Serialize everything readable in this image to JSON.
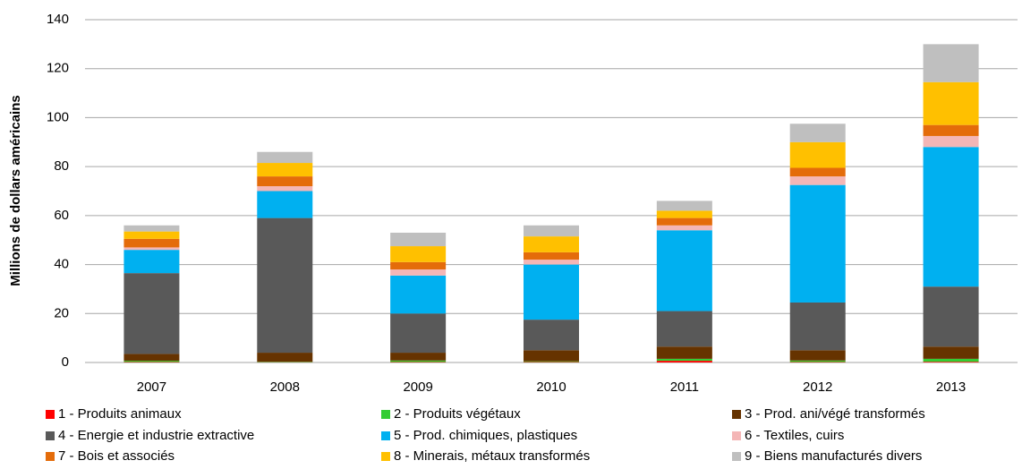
{
  "chart_data": {
    "type": "stacked_bar",
    "y_label": "Millions de dollars américains",
    "categories": [
      "2007",
      "2008",
      "2009",
      "2010",
      "2011",
      "2012",
      "2013"
    ],
    "ylim": [
      0,
      140
    ],
    "yticks": [
      0,
      20,
      40,
      60,
      80,
      100,
      120,
      140
    ],
    "grid": true,
    "series": [
      {
        "name": "1 - Produits animaux",
        "color": "#ff0000",
        "values": [
          0.2,
          0.1,
          0.2,
          0.2,
          0.7,
          0.2,
          0.3
        ]
      },
      {
        "name": "2 - Produits végétaux",
        "color": "#33cc33",
        "values": [
          0.5,
          0.2,
          0.6,
          0.3,
          0.8,
          0.6,
          1.2
        ]
      },
      {
        "name": "3 - Prod. ani/végé transformés",
        "color": "#663300",
        "values": [
          2.8,
          3.7,
          3.2,
          4.5,
          5,
          4.2,
          5
        ]
      },
      {
        "name": "4 - Energie et industrie extractive",
        "color": "#595959",
        "values": [
          33,
          55,
          16,
          12.5,
          14.5,
          19.5,
          24.5
        ]
      },
      {
        "name": "5 - Prod. chimiques, plastiques",
        "color": "#00b0f0",
        "values": [
          9.5,
          11,
          15.5,
          22.5,
          33,
          48,
          57
        ]
      },
      {
        "name": "6 - Textiles, cuirs",
        "color": "#f4b6b6",
        "values": [
          1,
          2,
          2.5,
          2,
          2,
          3.5,
          4.5
        ]
      },
      {
        "name": "7 - Bois et associés",
        "color": "#e46c0a",
        "values": [
          3.5,
          4,
          3,
          3,
          3,
          3.5,
          4.5
        ]
      },
      {
        "name": "8 - Minerais, métaux transformés",
        "color": "#ffc000",
        "values": [
          3,
          5.5,
          6.5,
          6.5,
          3,
          10.5,
          17.5
        ]
      },
      {
        "name": "9 - Biens manufacturés divers",
        "color": "#bfbfbf",
        "values": [
          2.5,
          4.5,
          5.5,
          4.5,
          4,
          7.5,
          15.5
        ]
      }
    ]
  }
}
